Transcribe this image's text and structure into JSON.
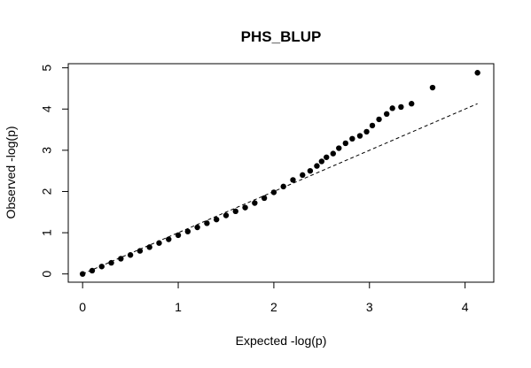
{
  "chart_data": {
    "type": "scatter",
    "title": "PHS_BLUP",
    "xlabel": "Expected -log(p)",
    "ylabel": "Observed -log(p)",
    "xlim": [
      -0.15,
      4.3
    ],
    "ylim": [
      -0.2,
      5.1
    ],
    "x_ticks": [
      "0",
      "1",
      "2",
      "3",
      "4"
    ],
    "y_ticks": [
      "0",
      "1",
      "2",
      "3",
      "4",
      "5"
    ],
    "grid": false,
    "legend": "none",
    "point_color": "#000000",
    "reference_line": {
      "style": "dashed",
      "color": "#000000",
      "from": [
        0,
        0
      ],
      "to": [
        4.13,
        4.13
      ]
    },
    "points": [
      [
        0.0,
        0.0
      ],
      [
        0.1,
        0.08
      ],
      [
        0.2,
        0.18
      ],
      [
        0.3,
        0.27
      ],
      [
        0.4,
        0.37
      ],
      [
        0.5,
        0.46
      ],
      [
        0.6,
        0.56
      ],
      [
        0.7,
        0.65
      ],
      [
        0.8,
        0.75
      ],
      [
        0.9,
        0.84
      ],
      [
        1.0,
        0.94
      ],
      [
        1.1,
        1.03
      ],
      [
        1.2,
        1.13
      ],
      [
        1.3,
        1.23
      ],
      [
        1.4,
        1.32
      ],
      [
        1.5,
        1.42
      ],
      [
        1.6,
        1.52
      ],
      [
        1.7,
        1.61
      ],
      [
        1.8,
        1.72
      ],
      [
        1.9,
        1.84
      ],
      [
        2.0,
        1.98
      ],
      [
        2.1,
        2.12
      ],
      [
        2.2,
        2.28
      ],
      [
        2.3,
        2.4
      ],
      [
        2.38,
        2.5
      ],
      [
        2.45,
        2.62
      ],
      [
        2.5,
        2.73
      ],
      [
        2.55,
        2.83
      ],
      [
        2.62,
        2.92
      ],
      [
        2.68,
        3.05
      ],
      [
        2.75,
        3.17
      ],
      [
        2.82,
        3.28
      ],
      [
        2.9,
        3.35
      ],
      [
        2.97,
        3.45
      ],
      [
        3.03,
        3.6
      ],
      [
        3.1,
        3.75
      ],
      [
        3.18,
        3.88
      ],
      [
        3.24,
        4.02
      ],
      [
        3.33,
        4.05
      ],
      [
        3.44,
        4.13
      ],
      [
        3.66,
        4.52
      ],
      [
        4.13,
        4.88
      ]
    ]
  }
}
